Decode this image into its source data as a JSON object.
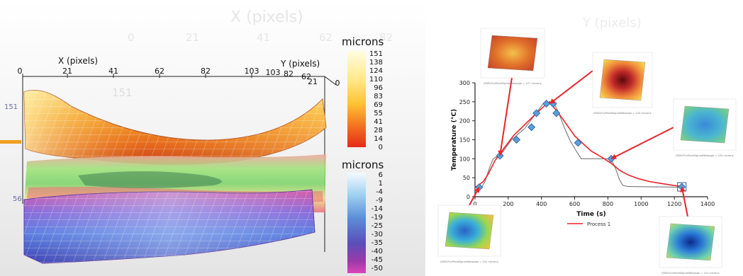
{
  "left": {
    "ghost_x_title": "X (pixels)",
    "ghost_y_title": "Y (pixels)",
    "ghost_x_ticks": [
      "0",
      "21",
      "41",
      "62",
      "82"
    ],
    "ghost_y_tick": "151",
    "x_axis_title": "X (pixels)",
    "y_axis_title": "Y (pixels)",
    "x_ticks": [
      "0",
      "21",
      "41",
      "62",
      "82",
      "103"
    ],
    "y_ticks": [
      "103",
      "82",
      "62",
      "41",
      "21",
      "0"
    ],
    "z_ticks": [
      "151",
      "56"
    ],
    "colorbar_top": {
      "title": "microns",
      "ticks": [
        "151",
        "138",
        "124",
        "110",
        "96",
        "83",
        "69",
        "55",
        "41",
        "28",
        "14",
        "0"
      ],
      "colors": [
        "#fffde0",
        "#ffe88a",
        "#ffc233",
        "#f26b1f",
        "#e52b1a"
      ]
    },
    "colorbar_bottom": {
      "title": "microns",
      "ticks": [
        "6",
        "1",
        "-4",
        "-9",
        "-14",
        "-19",
        "-25",
        "-30",
        "-35",
        "-40",
        "-45",
        "-50"
      ],
      "colors": [
        "#f5faff",
        "#9fd2f0",
        "#5b8fd8",
        "#5a4fb8",
        "#9b3aa8",
        "#d946b8"
      ]
    }
  },
  "chart_data": {
    "type": "line",
    "title": "",
    "xlabel": "Time (s)",
    "ylabel": "Temperature (°C)",
    "xlim": [
      0,
      1400
    ],
    "ylim": [
      0,
      300
    ],
    "xticks": [
      "0",
      "200",
      "400",
      "600",
      "800",
      "1000",
      "1200",
      "1400"
    ],
    "yticks": [
      "0",
      "50",
      "100",
      "150",
      "200",
      "250",
      "300"
    ],
    "legend_position": "bottom-center",
    "series": [
      {
        "name": "Process 1",
        "color": "#e8242b",
        "points": [
          [
            0,
            25
          ],
          [
            20,
            30
          ],
          [
            50,
            40
          ],
          [
            80,
            60
          ],
          [
            120,
            95
          ],
          [
            170,
            125
          ],
          [
            230,
            160
          ],
          [
            300,
            190
          ],
          [
            370,
            220
          ],
          [
            420,
            240
          ],
          [
            450,
            250
          ],
          [
            480,
            232
          ],
          [
            520,
            210
          ],
          [
            560,
            185
          ],
          [
            600,
            160
          ],
          [
            650,
            140
          ],
          [
            700,
            120
          ],
          [
            760,
            105
          ],
          [
            820,
            88
          ],
          [
            870,
            70
          ],
          [
            920,
            58
          ],
          [
            980,
            48
          ],
          [
            1050,
            40
          ],
          [
            1120,
            35
          ],
          [
            1180,
            31
          ],
          [
            1230,
            28
          ],
          [
            1250,
            27
          ]
        ]
      },
      {
        "name": "",
        "color": "#777777",
        "points": [
          [
            0,
            25
          ],
          [
            40,
            25
          ],
          [
            60,
            40
          ],
          [
            90,
            80
          ],
          [
            110,
            100
          ],
          [
            140,
            108
          ],
          [
            170,
            120
          ],
          [
            220,
            150
          ],
          [
            300,
            180
          ],
          [
            360,
            215
          ],
          [
            410,
            245
          ],
          [
            470,
            250
          ],
          [
            500,
            225
          ],
          [
            540,
            180
          ],
          [
            570,
            150
          ],
          [
            610,
            120
          ],
          [
            640,
            100
          ],
          [
            820,
            100
          ],
          [
            850,
            70
          ],
          [
            870,
            45
          ],
          [
            890,
            30
          ],
          [
            920,
            27
          ],
          [
            1250,
            25
          ],
          [
            1250,
            10
          ]
        ]
      }
    ],
    "markers": [
      [
        25,
        25
      ],
      [
        150,
        108
      ],
      [
        250,
        150
      ],
      [
        340,
        183
      ],
      [
        370,
        220
      ],
      [
        430,
        245
      ],
      [
        470,
        245
      ],
      [
        490,
        220
      ],
      [
        620,
        142
      ],
      [
        820,
        100
      ],
      [
        1245,
        26
      ]
    ],
    "thumbnails": [
      {
        "caption": "JEDECFullFieldSignedWarpage = 127 microns",
        "target": [
          150,
          108
        ],
        "palette": "warm"
      },
      {
        "caption": "JEDECFullFieldSignedWarpage = 145 microns",
        "target": [
          450,
          245
        ],
        "palette": "dome"
      },
      {
        "caption": "JEDECFullFieldSignedWarpage = 104 microns",
        "target": [
          820,
          100
        ],
        "palette": "cool"
      },
      {
        "caption": "JEDECFullFieldSignedWarpage = 141 microns",
        "target": [
          25,
          25
        ],
        "palette": "mixed"
      },
      {
        "caption": "JEDECFullFieldSignedWarpage = 151 microns",
        "target": [
          1245,
          26
        ],
        "palette": "bowl"
      }
    ]
  }
}
